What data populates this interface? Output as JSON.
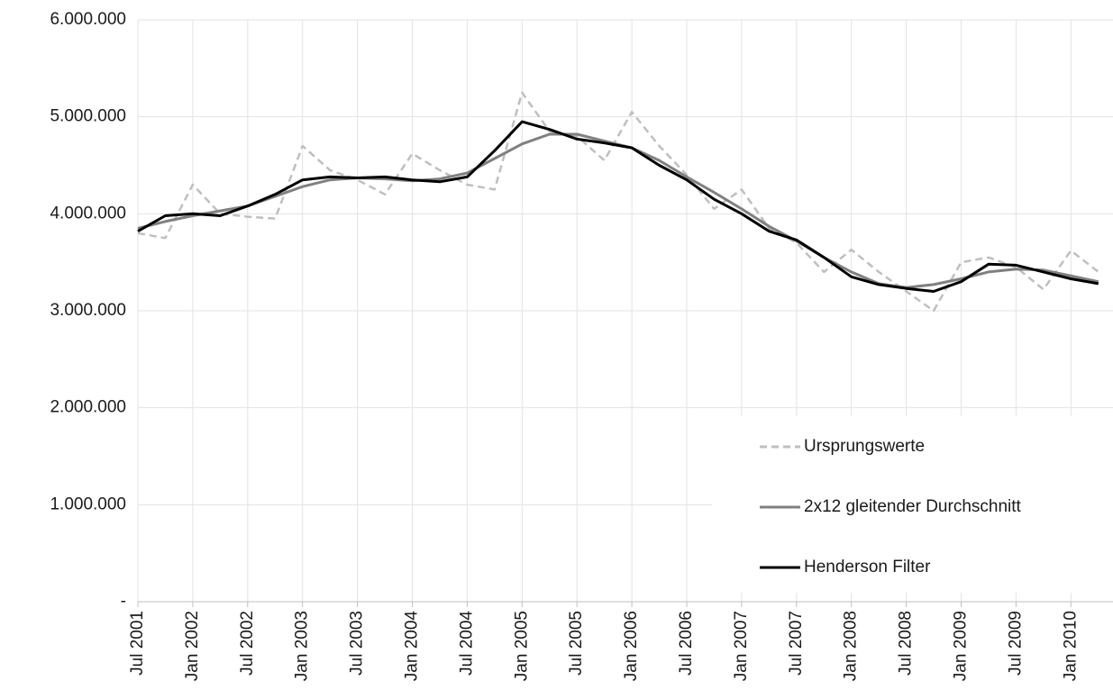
{
  "chart_data": {
    "type": "line",
    "categories": [
      "Jul 2001",
      null,
      "Jan 2002",
      null,
      "Jul 2002",
      null,
      "Jan 2003",
      null,
      "Jul 2003",
      null,
      "Jan 2004",
      null,
      "Jul 2004",
      null,
      "Jan 2005",
      null,
      "Jul 2005",
      null,
      "Jan 2006",
      null,
      "Jul 2006",
      null,
      "Jan 2007",
      null,
      "Jul 2007",
      null,
      "Jan 2008",
      null,
      "Jul 2008",
      null,
      "Jan 2009",
      null,
      "Jul 2009",
      null,
      "Jan 2010",
      null
    ],
    "series": [
      {
        "name": "Ursprungswerte",
        "color": "#bfbfbf",
        "dashed": true,
        "values": [
          3800000,
          3750000,
          4300000,
          4000000,
          3970000,
          3950000,
          4700000,
          4450000,
          4350000,
          4200000,
          4620000,
          4450000,
          4300000,
          4250000,
          5250000,
          4850000,
          4800000,
          4550000,
          5050000,
          4700000,
          4400000,
          4050000,
          4250000,
          3850000,
          3700000,
          3400000,
          3630000,
          3400000,
          3200000,
          3000000,
          3500000,
          3550000,
          3450000,
          3220000,
          3620000,
          3400000
        ]
      },
      {
        "name": "2x12 gleitender Durchschnitt",
        "color": "#808080",
        "dashed": false,
        "values": [
          3850000,
          3920000,
          3980000,
          4030000,
          4080000,
          4180000,
          4280000,
          4350000,
          4370000,
          4360000,
          4340000,
          4360000,
          4420000,
          4570000,
          4720000,
          4820000,
          4820000,
          4750000,
          4680000,
          4550000,
          4380000,
          4220000,
          4050000,
          3870000,
          3720000,
          3550000,
          3400000,
          3280000,
          3240000,
          3270000,
          3330000,
          3400000,
          3430000,
          3420000,
          3360000,
          3300000
        ]
      },
      {
        "name": "Henderson Filter",
        "color": "#000000",
        "dashed": false,
        "values": [
          3820000,
          3980000,
          4000000,
          3980000,
          4080000,
          4200000,
          4350000,
          4380000,
          4370000,
          4380000,
          4350000,
          4330000,
          4380000,
          4650000,
          4950000,
          4870000,
          4770000,
          4730000,
          4680000,
          4500000,
          4350000,
          4150000,
          4000000,
          3820000,
          3730000,
          3550000,
          3350000,
          3270000,
          3230000,
          3200000,
          3300000,
          3480000,
          3470000,
          3400000,
          3330000,
          3280000
        ]
      }
    ],
    "ylim": [
      0,
      6000000
    ],
    "yticks": [
      {
        "value": 0,
        "label": "-"
      },
      {
        "value": 1000000,
        "label": "1.000.000"
      },
      {
        "value": 2000000,
        "label": "2.000.000"
      },
      {
        "value": 3000000,
        "label": "3.000.000"
      },
      {
        "value": 4000000,
        "label": "4.000.000"
      },
      {
        "value": 5000000,
        "label": "5.000.000"
      },
      {
        "value": 6000000,
        "label": "6.000.000"
      }
    ],
    "grid": true,
    "legend": "bottom-right"
  }
}
